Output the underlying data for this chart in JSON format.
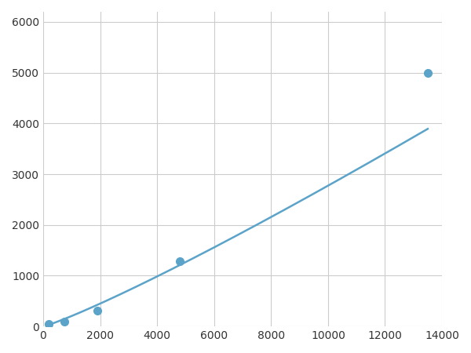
{
  "x_data": [
    200,
    750,
    1900,
    4800,
    13500
  ],
  "y_data": [
    50,
    100,
    310,
    1280,
    5000
  ],
  "line_color": "#5ba3c9",
  "marker_color": "#5ba3c9",
  "marker_size": 7,
  "line_width": 1.8,
  "xlim": [
    0,
    14000
  ],
  "ylim": [
    0,
    6200
  ],
  "xticks": [
    0,
    2000,
    4000,
    6000,
    8000,
    10000,
    12000,
    14000
  ],
  "yticks": [
    0,
    1000,
    2000,
    3000,
    4000,
    5000,
    6000
  ],
  "grid_color": "#cccccc",
  "background_color": "#ffffff",
  "figsize": [
    6.0,
    4.5
  ],
  "dpi": 100
}
